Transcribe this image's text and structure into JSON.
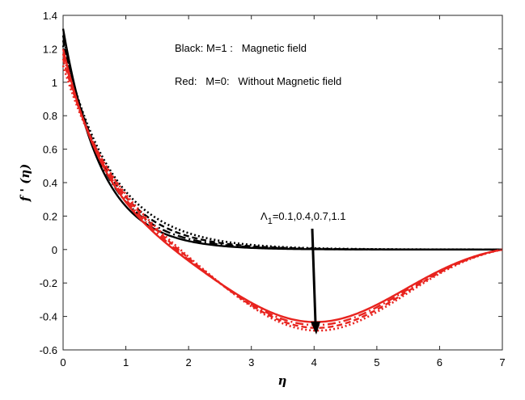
{
  "chart_data": {
    "type": "line",
    "xlabel": "η",
    "ylabel": "f ' (η)",
    "xlim": [
      0,
      7
    ],
    "ylim": [
      -0.6,
      1.4
    ],
    "xticks": [
      "0",
      "1",
      "2",
      "3",
      "4",
      "5",
      "6",
      "7"
    ],
    "yticks": [
      "-0.6",
      "-0.4",
      "-0.2",
      "0",
      "0.2",
      "0.4",
      "0.6",
      "0.8",
      "1",
      "1.2",
      "1.4"
    ],
    "grid": false,
    "annotations": {
      "legend_black": "Black: M=1 :   Magnetic field",
      "legend_red": "Red:   M=0:   Without Magnetic field",
      "param_symbol": "Λ",
      "param_subscript": "1",
      "param_values": "=0.1,0.4,0.7,1.1"
    },
    "colors": {
      "black": "#000000",
      "red": "#e8231e"
    },
    "series": [
      {
        "color": "black",
        "style": "solid",
        "f0": 1.32,
        "k": 1.63,
        "x": [
          0,
          0.5,
          1,
          1.5,
          2,
          2.5,
          3,
          3.5,
          4,
          5,
          6,
          7
        ],
        "y": [
          1.32,
          0.59,
          0.26,
          0.115,
          0.051,
          0.022,
          0.01,
          0.004,
          0.002,
          0.0,
          0.0,
          0.0
        ]
      },
      {
        "color": "black",
        "style": "dashdot",
        "f0": 1.28,
        "k": 1.5,
        "x": [
          0,
          0.5,
          1,
          1.5,
          2,
          2.5,
          3,
          3.5,
          4,
          5,
          6,
          7
        ],
        "y": [
          1.28,
          0.61,
          0.29,
          0.135,
          0.064,
          0.03,
          0.014,
          0.007,
          0.003,
          0.0,
          0.0,
          0.0
        ]
      },
      {
        "color": "black",
        "style": "dashed",
        "f0": 1.25,
        "k": 1.38,
        "x": [
          0,
          0.5,
          1,
          1.5,
          2,
          2.5,
          3,
          3.5,
          4,
          5,
          6,
          7
        ],
        "y": [
          1.25,
          0.63,
          0.31,
          0.157,
          0.079,
          0.04,
          0.02,
          0.01,
          0.005,
          0.0,
          0.0,
          0.0
        ]
      },
      {
        "color": "black",
        "style": "dotted",
        "f0": 1.22,
        "k": 1.26,
        "x": [
          0,
          0.5,
          1,
          1.5,
          2,
          2.5,
          3,
          3.5,
          4,
          5,
          6,
          7
        ],
        "y": [
          1.22,
          0.65,
          0.35,
          0.185,
          0.098,
          0.052,
          0.028,
          0.015,
          0.008,
          0.0,
          0.0,
          0.0
        ]
      },
      {
        "color": "red",
        "style": "solid",
        "f0": 1.2,
        "k": 1.2,
        "c": 0.42,
        "x": [
          0,
          0.5,
          1,
          1.5,
          2,
          2.5,
          3,
          3.5,
          4,
          4.25,
          5,
          6,
          7
        ],
        "y": [
          1.2,
          0.55,
          0.17,
          -0.05,
          -0.18,
          -0.28,
          -0.35,
          -0.39,
          -0.415,
          -0.42,
          -0.39,
          -0.24,
          0.0
        ]
      },
      {
        "color": "red",
        "style": "dashdot",
        "f0": 1.17,
        "k": 1.12,
        "c": 0.44,
        "x": [
          0,
          0.5,
          1,
          1.5,
          2,
          2.5,
          3,
          3.5,
          4,
          4.2,
          5,
          6,
          7
        ],
        "y": [
          1.17,
          0.58,
          0.2,
          -0.04,
          -0.18,
          -0.29,
          -0.36,
          -0.41,
          -0.435,
          -0.44,
          -0.41,
          -0.26,
          0.0
        ]
      },
      {
        "color": "red",
        "style": "dashed",
        "f0": 1.14,
        "k": 1.04,
        "c": 0.46,
        "x": [
          0,
          0.5,
          1,
          1.5,
          2,
          2.5,
          3,
          3.5,
          4,
          4.15,
          5,
          6,
          7
        ],
        "y": [
          1.14,
          0.6,
          0.23,
          -0.02,
          -0.17,
          -0.29,
          -0.37,
          -0.42,
          -0.455,
          -0.46,
          -0.43,
          -0.28,
          0.0
        ]
      },
      {
        "color": "red",
        "style": "dotted",
        "f0": 1.1,
        "k": 0.97,
        "c": 0.48,
        "x": [
          0,
          0.5,
          1,
          1.5,
          2,
          2.5,
          3,
          3.5,
          4,
          4.1,
          5,
          6,
          7
        ],
        "y": [
          1.1,
          0.62,
          0.26,
          0.01,
          -0.16,
          -0.29,
          -0.38,
          -0.44,
          -0.475,
          -0.48,
          -0.45,
          -0.3,
          0.0
        ]
      }
    ]
  }
}
